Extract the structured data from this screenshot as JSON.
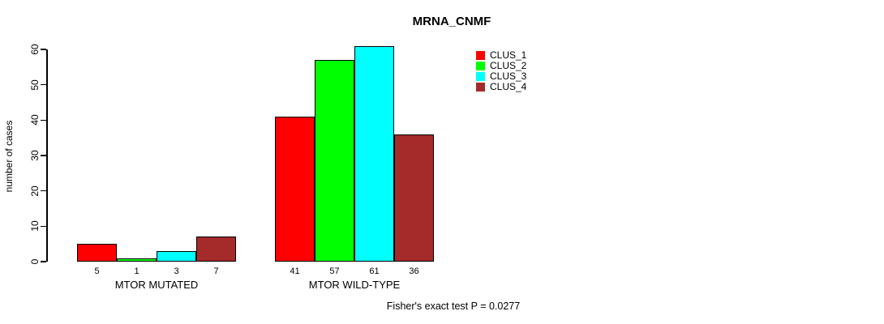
{
  "chart_data": {
    "type": "bar",
    "title": "MRNA_CNMF",
    "ylabel": "number of cases",
    "xlabel": "",
    "ylim": [
      0,
      60
    ],
    "yticks": [
      0,
      10,
      20,
      30,
      40,
      50,
      60
    ],
    "grid": false,
    "categories": [
      "MTOR MUTATED",
      "MTOR WILD-TYPE"
    ],
    "groups": [
      {
        "label": "MTOR MUTATED",
        "values": [
          5,
          1,
          3,
          7
        ]
      },
      {
        "label": "MTOR WILD-TYPE",
        "values": [
          41,
          57,
          61,
          36
        ]
      }
    ],
    "series": [
      {
        "name": "CLUS_1",
        "values": [
          5,
          41
        ]
      },
      {
        "name": "CLUS_2",
        "values": [
          1,
          57
        ]
      },
      {
        "name": "CLUS_3",
        "values": [
          3,
          61
        ]
      },
      {
        "name": "CLUS_4",
        "values": [
          7,
          36
        ]
      }
    ],
    "series_colors": [
      "#ff0000",
      "#00ff00",
      "#00ffff",
      "#a52a2a"
    ],
    "bar_value_labels": [
      [
        5,
        1,
        3,
        7
      ],
      [
        41,
        57,
        61,
        36
      ]
    ],
    "legend": [
      {
        "label": "CLUS_1",
        "color": "#ff0000"
      },
      {
        "label": "CLUS_2",
        "color": "#00ff00"
      },
      {
        "label": "CLUS_3",
        "color": "#00ffff"
      },
      {
        "label": "CLUS_4",
        "color": "#a52a2a"
      }
    ],
    "legend_position": "right-top",
    "annotation": "Fisher's exact test P = 0.0277"
  }
}
